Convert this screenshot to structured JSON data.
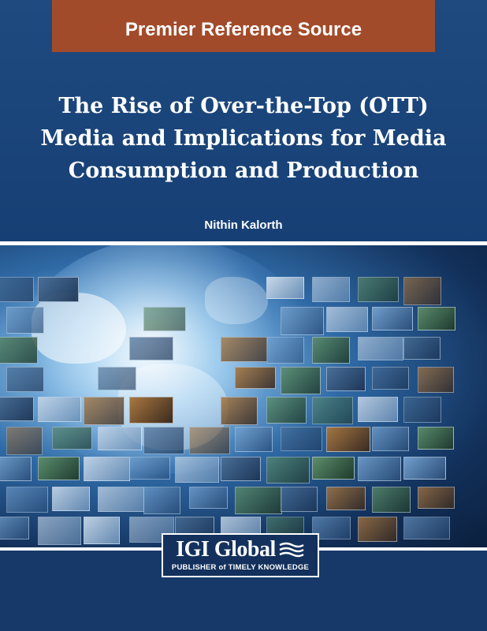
{
  "banner": {
    "label": "Premier Reference Source"
  },
  "book": {
    "title_lines": [
      "The Rise of Over-the-Top (OTT)",
      "Media and Implications for Media",
      "Consumption and Production"
    ],
    "author": "Nithin Kalorth"
  },
  "publisher": {
    "name": "IGI Global",
    "tagline": "PUBLISHER of TIMELY KNOWLEDGE"
  },
  "colors": {
    "banner": "#a24b2a",
    "background": "#163a6b",
    "text": "#ffffff"
  }
}
